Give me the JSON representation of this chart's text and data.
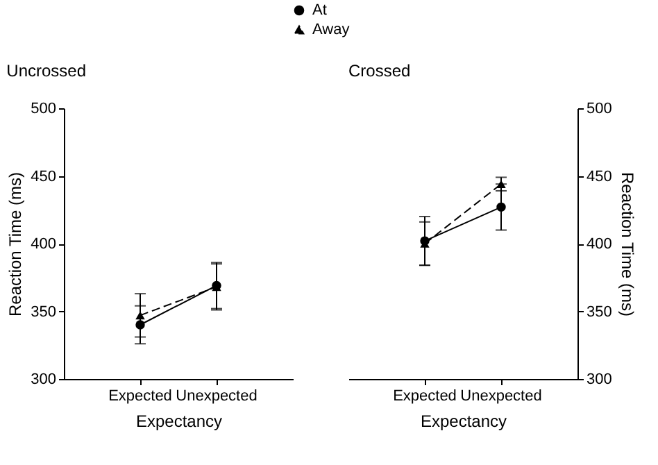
{
  "chart_data": [
    {
      "type": "line",
      "title": "Uncrossed",
      "xlabel": "Expectancy",
      "ylabel": "Reaction Time (ms)",
      "categories": [
        "Expected",
        "Unexpected"
      ],
      "ylim": [
        300,
        500
      ],
      "yticks": [
        300,
        350,
        400,
        450,
        500
      ],
      "grid": false,
      "legend": "top",
      "series": [
        {
          "name": "At",
          "color": "#000000",
          "marker": "circle",
          "line_style": "solid",
          "values": [
            340,
            369
          ],
          "errors": [
            14,
            17
          ]
        },
        {
          "name": "Away",
          "color": "#000000",
          "marker": "triangle",
          "line_style": "dashed",
          "values": [
            347,
            368
          ],
          "errors": [
            16,
            17
          ]
        }
      ]
    },
    {
      "type": "line",
      "title": "Crossed",
      "xlabel": "Expectancy",
      "ylabel": "Reaction Time (ms)",
      "categories": [
        "Expected",
        "Unexpected"
      ],
      "ylim": [
        300,
        500
      ],
      "yticks": [
        300,
        350,
        400,
        450,
        500
      ],
      "grid": false,
      "legend": "top",
      "series": [
        {
          "name": "At",
          "color": "#000000",
          "marker": "circle",
          "line_style": "solid",
          "values": [
            402,
            427
          ],
          "errors": [
            18,
            17
          ]
        },
        {
          "name": "Away",
          "color": "#000000",
          "marker": "triangle",
          "line_style": "dashed",
          "values": [
            400,
            444
          ],
          "errors": [
            16,
            5
          ]
        }
      ]
    }
  ]
}
